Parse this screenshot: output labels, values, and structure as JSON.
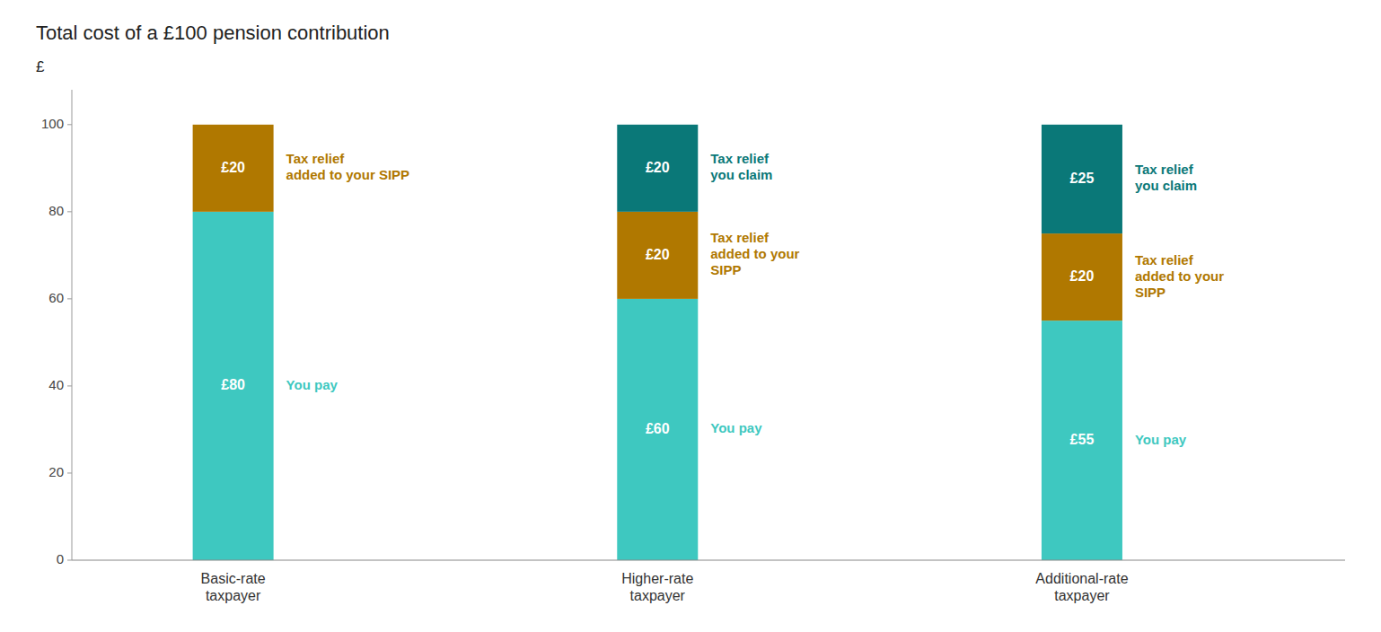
{
  "chart_data": {
    "type": "bar",
    "stacked": true,
    "title": "Total cost of a £100 pension contribution",
    "ylabel": "£",
    "categories": [
      "Basic-rate\ntaxpayer",
      "Higher-rate\ntaxpayer",
      "Additional-rate\ntaxpayer"
    ],
    "series": [
      {
        "color": "#3ec8c0",
        "values": [
          80,
          60,
          55
        ],
        "value_labels": [
          "£80",
          "£60",
          "£55"
        ],
        "annotations": [
          "You pay",
          "You pay",
          "You pay"
        ]
      },
      {
        "color": "#b07800",
        "values": [
          20,
          20,
          20
        ],
        "value_labels": [
          "£20",
          "£20",
          "£20"
        ],
        "annotations": [
          "Tax relief\nadded to your SIPP",
          "Tax relief\nadded to your\nSIPP",
          "Tax relief\nadded to your\nSIPP"
        ]
      },
      {
        "color": "#0a7878",
        "values": [
          0,
          20,
          25
        ],
        "value_labels": [
          null,
          "£20",
          "£25"
        ],
        "annotations": [
          null,
          "Tax relief\nyou claim",
          "Tax relief\nyou claim"
        ]
      }
    ],
    "ylim": [
      0,
      108
    ],
    "yticks": [
      0,
      20,
      40,
      60,
      80,
      100
    ],
    "grid": false,
    "data_labels": true
  }
}
